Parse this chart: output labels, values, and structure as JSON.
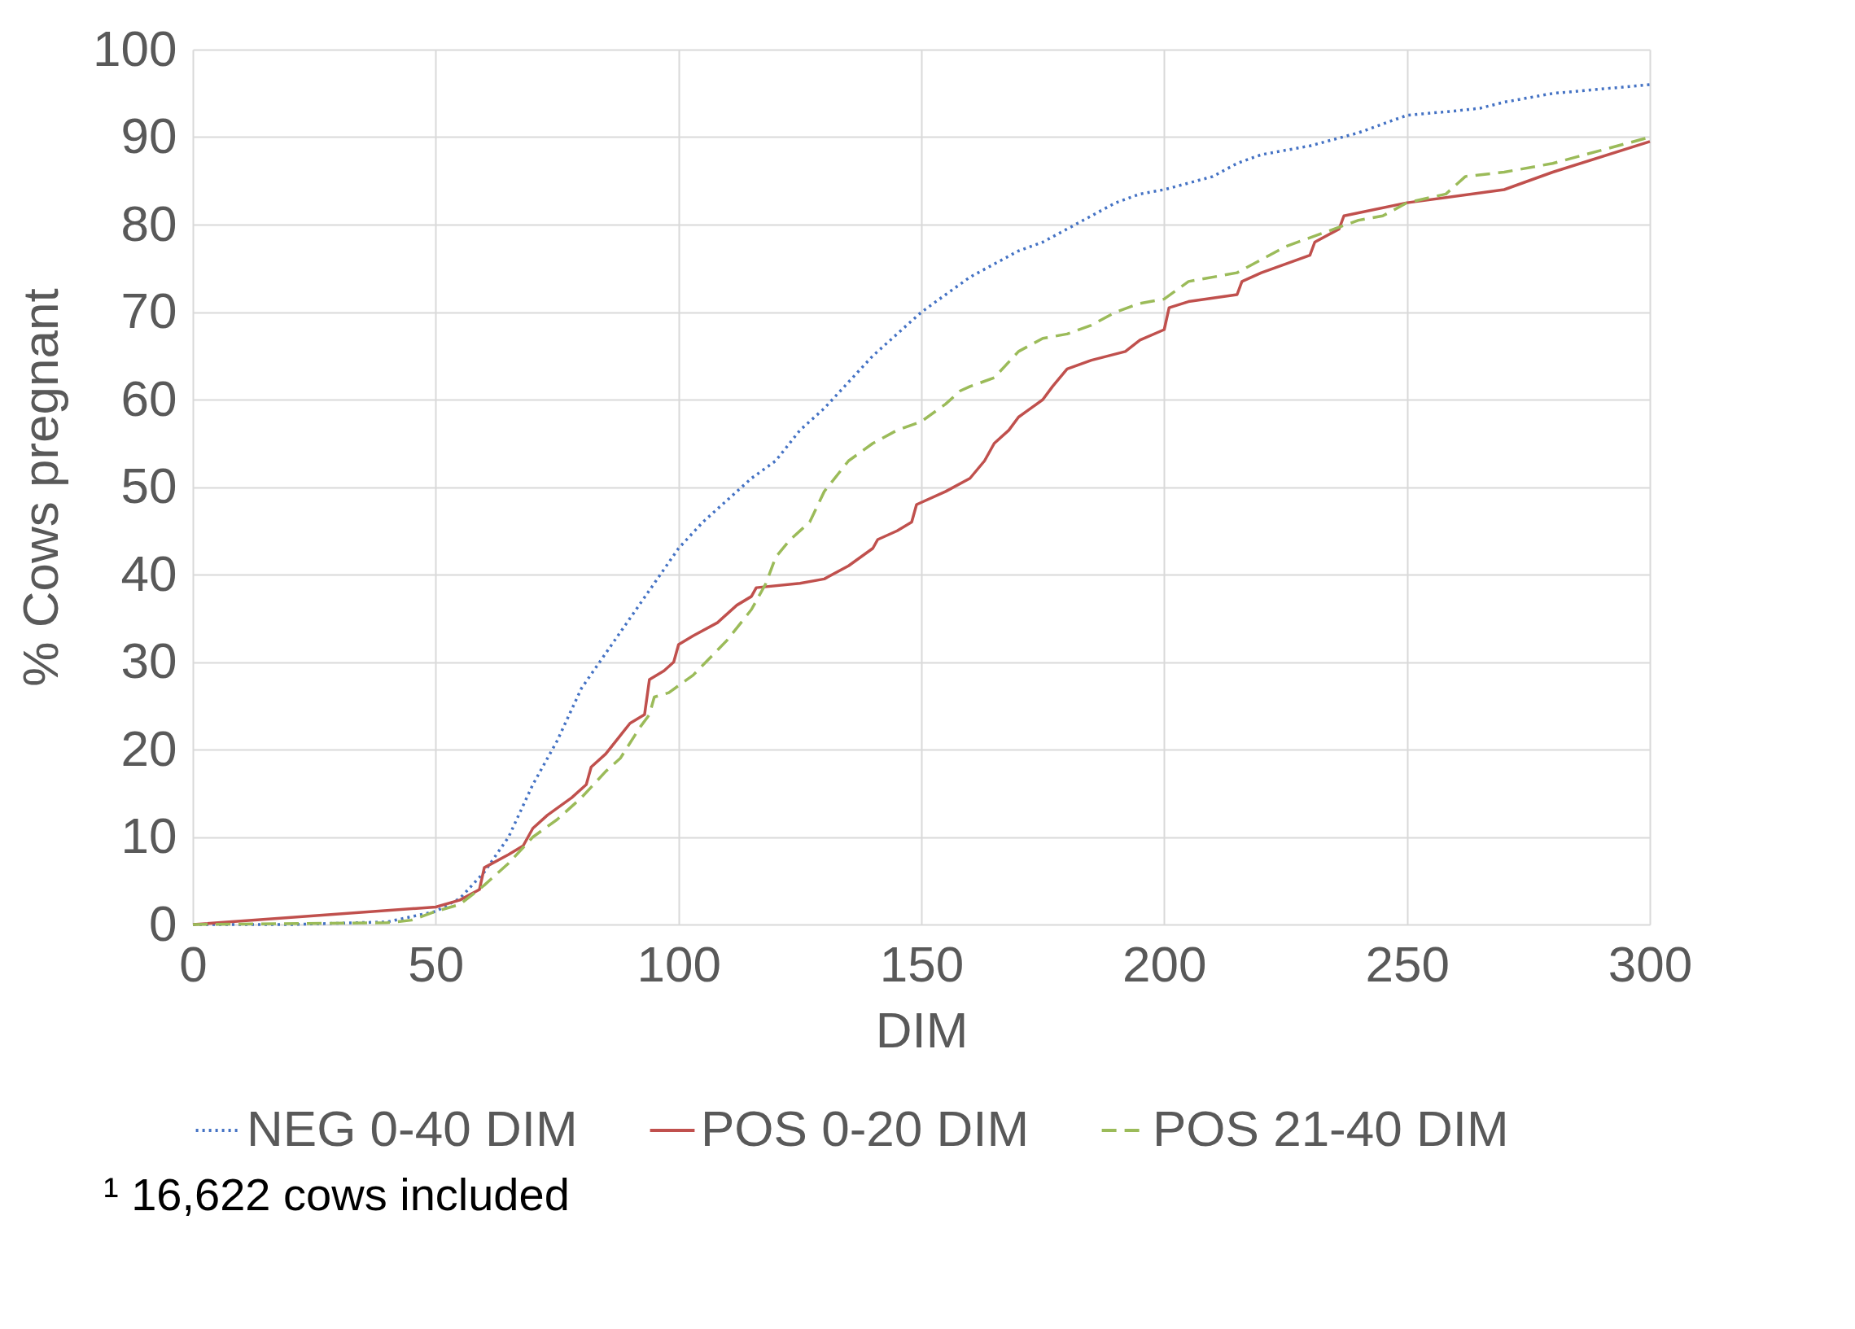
{
  "chart_data": {
    "type": "line",
    "xlabel": "DIM",
    "ylabel": "% Cows pregnant",
    "xlim": [
      0,
      300
    ],
    "xticks": [
      0,
      50,
      100,
      150,
      200,
      250,
      300
    ],
    "ylim": [
      0,
      100
    ],
    "yticks": [
      0,
      10,
      20,
      30,
      40,
      50,
      60,
      70,
      80,
      90,
      100
    ],
    "grid": true,
    "legend": "bottom",
    "marker": "none",
    "annotations": [
      "¹ 16,622 cows included"
    ],
    "series": [
      {
        "name": "NEG 0-40 DIM",
        "color": "#4472c4",
        "line_style": "dotted",
        "x": [
          0,
          20,
          40,
          50,
          55,
          60,
          65,
          70,
          75,
          80,
          85,
          90,
          95,
          100,
          105,
          110,
          115,
          120,
          125,
          130,
          135,
          140,
          145,
          150,
          155,
          160,
          165,
          170,
          175,
          180,
          185,
          190,
          195,
          200,
          210,
          215,
          220,
          230,
          240,
          250,
          260,
          265,
          270,
          280,
          290,
          300
        ],
        "values": [
          0,
          0,
          0.3,
          1.5,
          3,
          6,
          10,
          16,
          21,
          27,
          31,
          35,
          39,
          43,
          46,
          48.5,
          51,
          53,
          56.5,
          59,
          62,
          65,
          67.5,
          70,
          72,
          74,
          75.5,
          77,
          78,
          79.5,
          81,
          82.5,
          83.5,
          84,
          85.5,
          87,
          88,
          89,
          90.5,
          92.5,
          93,
          93.3,
          94,
          95,
          95.5,
          96
        ]
      },
      {
        "name": "POS 0-20 DIM",
        "color": "#c0504d",
        "line_style": "solid",
        "x": [
          0,
          50,
          55,
          59,
          60,
          65,
          68,
          70,
          73,
          78,
          81,
          82,
          85,
          90,
          93,
          94,
          97,
          99,
          100,
          103,
          108,
          112,
          115,
          116,
          125,
          130,
          135,
          140,
          141,
          145,
          148,
          149,
          155,
          160,
          163,
          165,
          168,
          170,
          175,
          177,
          180,
          185,
          192,
          195,
          200,
          201,
          205,
          215,
          216,
          220,
          230,
          231,
          236,
          237,
          250,
          270,
          280,
          300
        ],
        "values": [
          0,
          2,
          2.8,
          4,
          6.5,
          8,
          9,
          11,
          12.5,
          14.5,
          16,
          18,
          19.5,
          23,
          24,
          28,
          29,
          30,
          32,
          33,
          34.5,
          36.5,
          37.5,
          38.5,
          39,
          39.5,
          41,
          43,
          44,
          45,
          46,
          48,
          49.5,
          51,
          53,
          55,
          56.5,
          58,
          60,
          61.5,
          63.5,
          64.5,
          65.5,
          66.8,
          68,
          70.5,
          71.2,
          72,
          73.5,
          74.5,
          76.5,
          78,
          79.5,
          81,
          82.5,
          84,
          86,
          89.5
        ]
      },
      {
        "name": "POS 21-40 DIM",
        "color": "#9bbb59",
        "line_style": "dashed",
        "x": [
          0,
          40,
          45,
          50,
          55,
          60,
          65,
          70,
          75,
          80,
          85,
          88,
          92,
          94,
          95,
          98,
          103,
          110,
          115,
          118,
          120,
          123,
          127,
          130,
          135,
          140,
          145,
          150,
          155,
          158,
          160,
          165,
          170,
          175,
          180,
          185,
          190,
          195,
          200,
          205,
          215,
          220,
          225,
          230,
          235,
          240,
          245,
          250,
          258,
          262,
          270,
          280,
          290,
          300
        ],
        "values": [
          0,
          0.2,
          0.5,
          1.5,
          2.3,
          4.5,
          7,
          10,
          12,
          14.5,
          17.5,
          19,
          22.5,
          24,
          26,
          26.5,
          28.5,
          32.5,
          36,
          39,
          42,
          44,
          46,
          49.5,
          53,
          55,
          56.5,
          57.5,
          59.5,
          61,
          61.5,
          62.5,
          65.5,
          67,
          67.5,
          68.5,
          70,
          71,
          71.5,
          73.5,
          74.5,
          76,
          77.5,
          78.5,
          79.5,
          80.5,
          81,
          82.5,
          83.5,
          85.5,
          86,
          87,
          88.5,
          90
        ]
      }
    ]
  }
}
